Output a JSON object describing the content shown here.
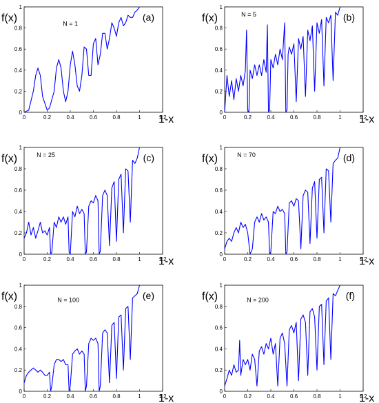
{
  "chart_data": [
    {
      "type": "line",
      "panel_label": "(a)",
      "annotation": "N = 1",
      "ylabel": "f(x)",
      "xlabel": "1-x",
      "xlim": [
        0,
        1.2
      ],
      "ylim": [
        0,
        1
      ],
      "xticks": [
        "0",
        "0.2",
        "0.4",
        "0.6",
        "0.8",
        "1",
        "1.2"
      ],
      "yticks": [
        "0",
        "0.2",
        "0.4",
        "0.6",
        "0.8",
        "1"
      ],
      "series": [
        {
          "color": "#0000ff",
          "x": [
            0,
            0.04,
            0.08,
            0.1,
            0.12,
            0.14,
            0.16,
            0.2,
            0.22,
            0.26,
            0.28,
            0.3,
            0.32,
            0.34,
            0.36,
            0.38,
            0.4,
            0.42,
            0.44,
            0.46,
            0.48,
            0.5,
            0.52,
            0.54,
            0.56,
            0.58,
            0.6,
            0.62,
            0.64,
            0.66,
            0.68,
            0.7,
            0.72,
            0.74,
            0.76,
            0.78,
            0.8,
            0.82,
            0.84,
            0.86,
            0.88,
            0.9,
            0.92,
            0.94,
            0.96,
            0.98,
            1.0
          ],
          "y": [
            0,
            0.02,
            0.2,
            0.35,
            0.42,
            0.35,
            0.15,
            0.02,
            0.04,
            0.2,
            0.42,
            0.5,
            0.42,
            0.2,
            0.1,
            0.2,
            0.45,
            0.58,
            0.45,
            0.25,
            0.2,
            0.35,
            0.62,
            0.6,
            0.35,
            0.35,
            0.65,
            0.7,
            0.45,
            0.55,
            0.75,
            0.75,
            0.6,
            0.7,
            0.85,
            0.8,
            0.72,
            0.85,
            0.9,
            0.82,
            0.85,
            0.92,
            0.9,
            0.9,
            0.95,
            0.97,
            1.0
          ]
        }
      ]
    },
    {
      "type": "line",
      "panel_label": "(b)",
      "annotation": "N = 5",
      "ylabel": "f(x)",
      "xlabel": "1-x",
      "xlim": [
        0,
        1.2
      ],
      "ylim": [
        0,
        1
      ],
      "xticks": [
        "0",
        "0.2",
        "0.4",
        "0.6",
        "0.8",
        "1",
        "1.2"
      ],
      "yticks": [
        "0",
        "0.2",
        "0.4",
        "0.6",
        "0.8",
        "1"
      ],
      "series": [
        {
          "color": "#0000ff",
          "x": [
            0,
            0.02,
            0.04,
            0.06,
            0.08,
            0.1,
            0.12,
            0.14,
            0.16,
            0.18,
            0.19,
            0.2,
            0.21,
            0.22,
            0.24,
            0.26,
            0.28,
            0.3,
            0.32,
            0.34,
            0.36,
            0.37,
            0.38,
            0.39,
            0.4,
            0.42,
            0.44,
            0.46,
            0.48,
            0.5,
            0.52,
            0.53,
            0.54,
            0.55,
            0.56,
            0.58,
            0.6,
            0.62,
            0.64,
            0.66,
            0.68,
            0.7,
            0.72,
            0.74,
            0.76,
            0.78,
            0.8,
            0.82,
            0.84,
            0.86,
            0.88,
            0.9,
            0.92,
            0.94,
            0.96,
            0.98,
            1.0
          ],
          "y": [
            0,
            0.35,
            0.15,
            0.3,
            0.12,
            0.32,
            0.2,
            0.35,
            0.25,
            0.4,
            0.78,
            0.02,
            0.0,
            0.4,
            0.32,
            0.45,
            0.35,
            0.45,
            0.35,
            0.5,
            0.38,
            0.83,
            0.0,
            0.02,
            0.5,
            0.42,
            0.55,
            0.45,
            0.6,
            0.5,
            0.85,
            0.0,
            0.02,
            0.55,
            0.62,
            0.55,
            0.65,
            0.1,
            0.7,
            0.6,
            0.72,
            0.15,
            0.78,
            0.68,
            0.82,
            0.2,
            0.85,
            0.75,
            0.88,
            0.25,
            0.9,
            0.85,
            0.92,
            0.3,
            0.95,
            0.92,
            1.0
          ]
        }
      ]
    },
    {
      "type": "line",
      "panel_label": "(c)",
      "annotation": "N = 25",
      "ylabel": "f(x)",
      "xlabel": "1-x",
      "xlim": [
        0,
        1.2
      ],
      "ylim": [
        0,
        1
      ],
      "xticks": [
        "0",
        "0.2",
        "0.4",
        "0.6",
        "0.8",
        "1",
        "1.2"
      ],
      "yticks": [
        "0",
        "0.2",
        "0.4",
        "0.6",
        "0.8",
        "1"
      ],
      "series": [
        {
          "color": "#0000ff",
          "x": [
            0,
            0.02,
            0.04,
            0.06,
            0.08,
            0.1,
            0.12,
            0.14,
            0.16,
            0.18,
            0.2,
            0.22,
            0.23,
            0.24,
            0.26,
            0.28,
            0.3,
            0.32,
            0.34,
            0.36,
            0.38,
            0.39,
            0.4,
            0.42,
            0.44,
            0.46,
            0.48,
            0.5,
            0.52,
            0.53,
            0.54,
            0.56,
            0.58,
            0.6,
            0.62,
            0.64,
            0.65,
            0.66,
            0.68,
            0.7,
            0.72,
            0.74,
            0.76,
            0.78,
            0.8,
            0.82,
            0.84,
            0.86,
            0.88,
            0.9,
            0.92,
            0.94,
            0.96,
            0.98,
            1.0
          ],
          "y": [
            0.15,
            0.2,
            0.3,
            0.18,
            0.25,
            0.15,
            0.22,
            0.3,
            0.2,
            0.22,
            0.18,
            0.25,
            0.0,
            0.02,
            0.3,
            0.25,
            0.35,
            0.3,
            0.35,
            0.28,
            0.35,
            0.02,
            0.0,
            0.4,
            0.35,
            0.45,
            0.38,
            0.42,
            0.38,
            0.0,
            0.02,
            0.45,
            0.5,
            0.48,
            0.55,
            0.5,
            0.0,
            0.03,
            0.55,
            0.6,
            0.55,
            0.08,
            0.62,
            0.68,
            0.12,
            0.7,
            0.75,
            0.2,
            0.8,
            0.78,
            0.3,
            0.88,
            0.85,
            0.9,
            1.0
          ]
        }
      ]
    },
    {
      "type": "line",
      "panel_label": "(d)",
      "annotation": "N = 70",
      "ylabel": "f(x)",
      "xlabel": "1-x",
      "xlim": [
        0,
        1.2
      ],
      "ylim": [
        0,
        1
      ],
      "xticks": [
        "0",
        "0.2",
        "0.4",
        "0.6",
        "0.8",
        "1",
        "1.2"
      ],
      "yticks": [
        "0",
        "0.2",
        "0.4",
        "0.6",
        "0.8",
        "1"
      ],
      "series": [
        {
          "color": "#0000ff",
          "x": [
            0,
            0.02,
            0.04,
            0.06,
            0.08,
            0.1,
            0.12,
            0.14,
            0.16,
            0.18,
            0.2,
            0.22,
            0.24,
            0.26,
            0.28,
            0.3,
            0.32,
            0.34,
            0.36,
            0.38,
            0.39,
            0.4,
            0.42,
            0.44,
            0.46,
            0.48,
            0.5,
            0.52,
            0.53,
            0.54,
            0.56,
            0.58,
            0.6,
            0.62,
            0.64,
            0.66,
            0.68,
            0.7,
            0.72,
            0.74,
            0.76,
            0.78,
            0.8,
            0.82,
            0.84,
            0.86,
            0.88,
            0.9,
            0.92,
            0.94,
            0.96,
            0.98,
            1.0
          ],
          "y": [
            0.05,
            0.12,
            0.15,
            0.12,
            0.2,
            0.25,
            0.2,
            0.3,
            0.25,
            0.28,
            0.2,
            0.0,
            0.05,
            0.3,
            0.35,
            0.3,
            0.38,
            0.32,
            0.35,
            0.3,
            0.0,
            0.02,
            0.4,
            0.38,
            0.45,
            0.4,
            0.42,
            0.38,
            0.0,
            0.02,
            0.48,
            0.5,
            0.45,
            0.52,
            0.5,
            0.05,
            0.55,
            0.6,
            0.58,
            0.1,
            0.62,
            0.68,
            0.15,
            0.7,
            0.72,
            0.2,
            0.8,
            0.78,
            0.3,
            0.85,
            0.88,
            0.9,
            1.0
          ]
        }
      ]
    },
    {
      "type": "line",
      "panel_label": "(e)",
      "annotation": "N = 100",
      "ylabel": "f(x)",
      "xlabel": "1-x",
      "xlim": [
        0,
        1.2
      ],
      "ylim": [
        0,
        1
      ],
      "xticks": [
        "0",
        "0.2",
        "0.4",
        "0.6",
        "0.8",
        "1",
        "1.2"
      ],
      "yticks": [
        "0",
        "0.2",
        "0.4",
        "0.6",
        "0.8",
        "1"
      ],
      "series": [
        {
          "color": "#0000ff",
          "x": [
            0,
            0.02,
            0.04,
            0.06,
            0.08,
            0.1,
            0.12,
            0.14,
            0.16,
            0.18,
            0.2,
            0.22,
            0.23,
            0.24,
            0.26,
            0.28,
            0.3,
            0.32,
            0.34,
            0.36,
            0.38,
            0.39,
            0.4,
            0.42,
            0.44,
            0.46,
            0.48,
            0.5,
            0.52,
            0.53,
            0.54,
            0.56,
            0.58,
            0.6,
            0.62,
            0.64,
            0.65,
            0.66,
            0.68,
            0.7,
            0.72,
            0.74,
            0.76,
            0.78,
            0.8,
            0.82,
            0.84,
            0.86,
            0.88,
            0.9,
            0.92,
            0.94,
            0.96,
            0.98,
            1.0
          ],
          "y": [
            0.08,
            0.15,
            0.18,
            0.2,
            0.22,
            0.2,
            0.18,
            0.2,
            0.18,
            0.15,
            0.15,
            0.18,
            0.0,
            0.05,
            0.25,
            0.3,
            0.3,
            0.28,
            0.3,
            0.25,
            0.25,
            0.0,
            0.05,
            0.35,
            0.38,
            0.4,
            0.35,
            0.38,
            0.35,
            0.0,
            0.05,
            0.45,
            0.5,
            0.48,
            0.5,
            0.45,
            0.0,
            0.05,
            0.55,
            0.58,
            0.55,
            0.08,
            0.62,
            0.65,
            0.12,
            0.7,
            0.72,
            0.2,
            0.78,
            0.8,
            0.3,
            0.88,
            0.9,
            0.92,
            1.0
          ]
        }
      ]
    },
    {
      "type": "line",
      "panel_label": "(f)",
      "annotation": "N = 200",
      "ylabel": "f(x)",
      "xlabel": "1-x",
      "xlim": [
        0,
        1.2
      ],
      "ylim": [
        0,
        1
      ],
      "xticks": [
        "0",
        "0.2",
        "0.4",
        "0.6",
        "0.8",
        "1",
        "1.2"
      ],
      "yticks": [
        "0",
        "0.2",
        "0.4",
        "0.6",
        "0.8",
        "1"
      ],
      "series": [
        {
          "color": "#0000ff",
          "x": [
            0,
            0.02,
            0.04,
            0.06,
            0.08,
            0.1,
            0.12,
            0.13,
            0.14,
            0.16,
            0.18,
            0.2,
            0.22,
            0.24,
            0.26,
            0.28,
            0.3,
            0.32,
            0.34,
            0.36,
            0.38,
            0.4,
            0.42,
            0.44,
            0.46,
            0.48,
            0.5,
            0.52,
            0.54,
            0.56,
            0.58,
            0.6,
            0.62,
            0.64,
            0.66,
            0.68,
            0.7,
            0.72,
            0.74,
            0.76,
            0.78,
            0.8,
            0.82,
            0.84,
            0.86,
            0.88,
            0.9,
            0.92,
            0.94,
            0.96,
            0.98,
            1.0
          ],
          "y": [
            0.05,
            0.12,
            0.2,
            0.15,
            0.25,
            0.18,
            0.2,
            0.48,
            0.15,
            0.3,
            0.25,
            0.3,
            0.2,
            0.35,
            0.3,
            0.05,
            0.38,
            0.42,
            0.35,
            0.45,
            0.4,
            0.5,
            0.35,
            0.45,
            0.05,
            0.5,
            0.55,
            0.45,
            0.05,
            0.58,
            0.62,
            0.55,
            0.65,
            0.1,
            0.68,
            0.72,
            0.65,
            0.15,
            0.75,
            0.78,
            0.7,
            0.2,
            0.8,
            0.82,
            0.25,
            0.85,
            0.88,
            0.3,
            0.92,
            0.9,
            0.95,
            1.0
          ]
        }
      ]
    }
  ]
}
